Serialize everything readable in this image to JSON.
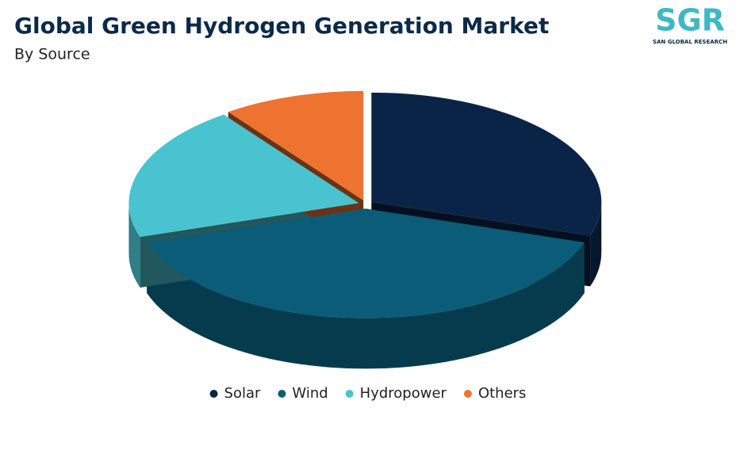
{
  "chart_data": {
    "type": "pie3d",
    "title": "Global Green Hydrogen Generation Market",
    "subtitle": "By Source",
    "categories": [
      "Solar",
      "Wind",
      "Hydropower",
      "Others"
    ],
    "values": [
      30,
      40,
      20,
      10
    ],
    "colors": [
      "#0a2447",
      "#0a5c78",
      "#4ac3d0",
      "#ee7330"
    ],
    "legend": "bottom"
  },
  "logo": {
    "mark": "SGR",
    "text": "SAN GLOBAL RESEARCH"
  }
}
